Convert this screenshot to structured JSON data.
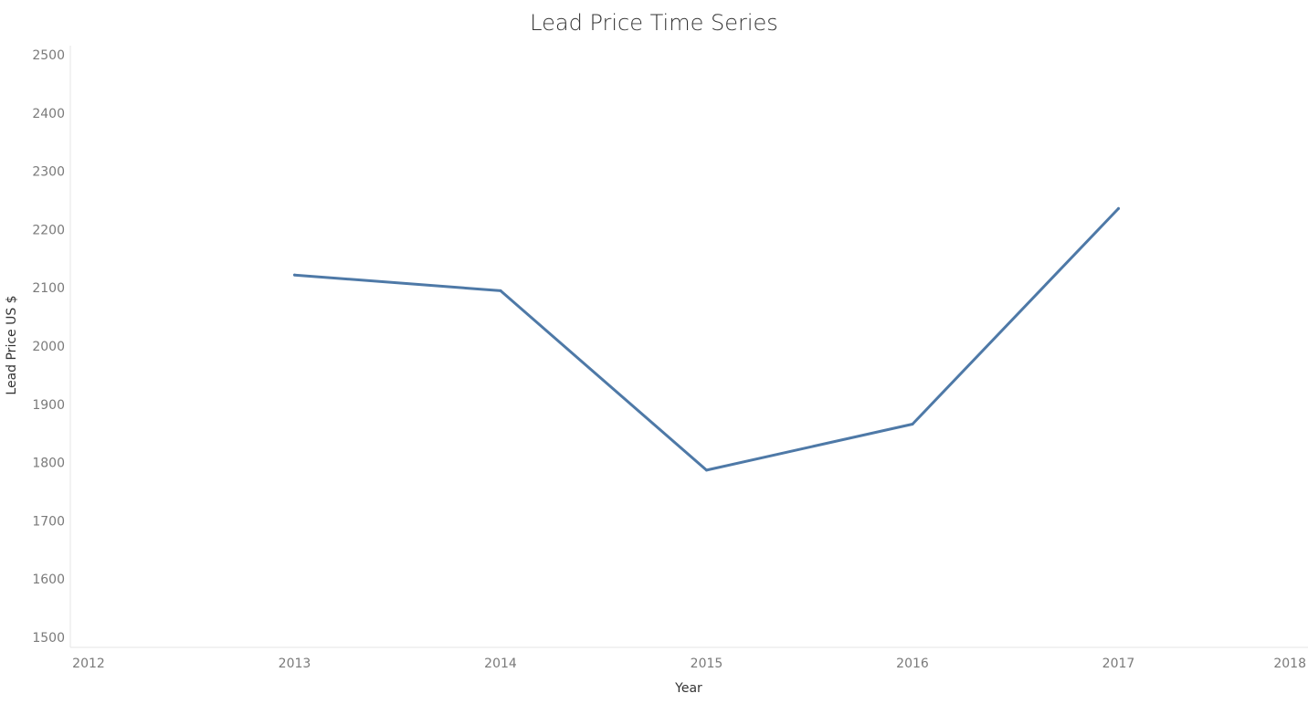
{
  "chart_data": {
    "type": "line",
    "title": "Lead Price Time Series",
    "xlabel": "Year",
    "ylabel": "Lead Price US $",
    "x_ticks": [
      "2012",
      "2013",
      "2014",
      "2015",
      "2016",
      "2017",
      "2018"
    ],
    "y_ticks": [
      "1500",
      "1600",
      "1700",
      "1800",
      "1900",
      "2000",
      "2100",
      "2200",
      "2300",
      "2400",
      "2500"
    ],
    "xlim": [
      2012,
      2018
    ],
    "ylim": [
      1500,
      2500
    ],
    "grid": false,
    "series": [
      {
        "color": "#4e79a7",
        "x": [
          2013,
          2014,
          2015,
          2016,
          2017
        ],
        "values": [
          2122,
          2095,
          1787,
          1866,
          2236
        ]
      }
    ]
  }
}
